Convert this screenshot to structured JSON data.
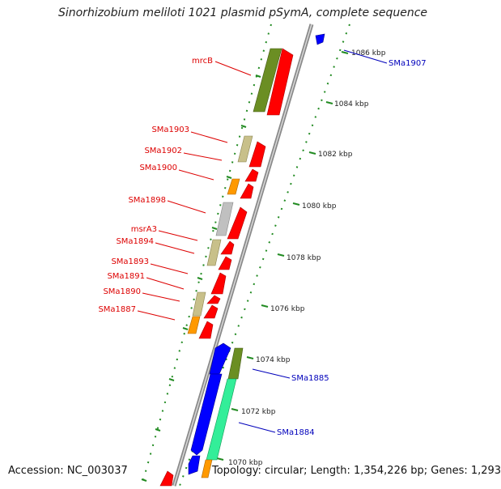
{
  "title": "Sinorhizobium meliloti 1021 plasmid pSymA, complete sequence",
  "accession": "Accession: NC_003037",
  "stats": "Topology: circular; Length: 1,354,226 bp; Genes: 1,293",
  "colors": {
    "backbone": "#888888",
    "forward_cds": "#ff0000",
    "reverse_cds": "#0000ff",
    "cog_olive": "#6b8e23",
    "cog_khaki": "#c8c08a",
    "cog_orange": "#ff9900",
    "cog_grey": "#c0c0c0",
    "cog_teal": "#33ee99",
    "tick": "#228b22",
    "forward_label": "#dd0000",
    "reverse_label": "#0000bb"
  },
  "ruler_labels": [
    "1086 kbp",
    "1084 kbp",
    "1082 kbp",
    "1080 kbp",
    "1078 kbp",
    "1076 kbp",
    "1074 kbp",
    "1072 kbp",
    "1070 kbp"
  ],
  "gene_labels_left": [
    "mrcB",
    "SMa1903",
    "SMa1902",
    "SMa1900",
    "SMa1898",
    "msrA3",
    "SMa1894",
    "SMa1893",
    "SMa1891",
    "SMa1890",
    "SMa1887"
  ],
  "gene_labels_right": [
    "SMa1907",
    "SMa1885",
    "SMa1884"
  ]
}
